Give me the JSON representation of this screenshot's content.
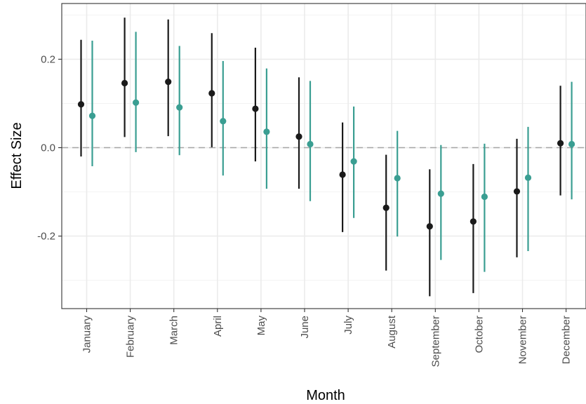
{
  "chart_data": {
    "type": "scatter",
    "title": "",
    "xlabel": "Month",
    "ylabel": "Effect Size",
    "categories": [
      "January",
      "February",
      "March",
      "April",
      "May",
      "June",
      "July",
      "August",
      "September",
      "October",
      "November",
      "December"
    ],
    "ylim": [
      -0.364,
      0.326
    ],
    "yticks": [
      -0.2,
      0.0,
      0.2
    ],
    "ytick_labels": [
      "-0.2",
      "0.0",
      "0.2"
    ],
    "reference_line": 0,
    "grid": true,
    "legend": "none",
    "series": [
      {
        "color": "#1a1a1a",
        "values": [
          0.098,
          0.146,
          0.149,
          0.123,
          0.088,
          0.025,
          -0.061,
          -0.136,
          -0.178,
          -0.167,
          -0.099,
          0.01
        ],
        "lower": [
          -0.02,
          0.024,
          0.026,
          0.001,
          -0.031,
          -0.093,
          -0.191,
          -0.278,
          -0.336,
          -0.329,
          -0.248,
          -0.108
        ],
        "upper": [
          0.244,
          0.294,
          0.29,
          0.259,
          0.226,
          0.159,
          0.057,
          -0.016,
          -0.049,
          -0.037,
          0.02,
          0.14
        ]
      },
      {
        "color": "#3a9e92",
        "values": [
          0.072,
          0.102,
          0.091,
          0.06,
          0.036,
          0.008,
          -0.031,
          -0.069,
          -0.104,
          -0.111,
          -0.068,
          0.008
        ],
        "lower": [
          -0.042,
          -0.01,
          -0.017,
          -0.063,
          -0.093,
          -0.121,
          -0.159,
          -0.201,
          -0.254,
          -0.281,
          -0.234,
          -0.117
        ],
        "upper": [
          0.242,
          0.262,
          0.23,
          0.196,
          0.179,
          0.151,
          0.093,
          0.038,
          0.006,
          0.009,
          0.047,
          0.149
        ]
      }
    ]
  }
}
